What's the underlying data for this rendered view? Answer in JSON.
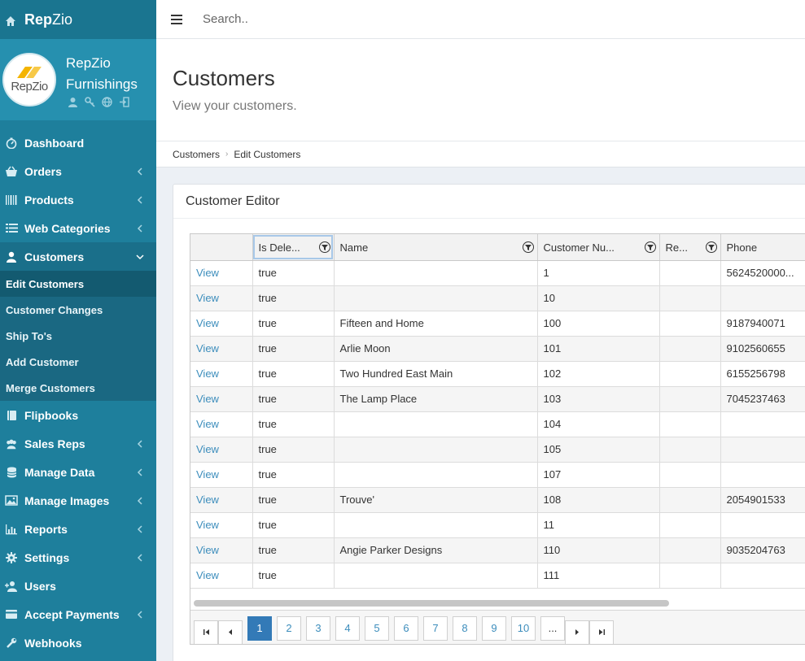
{
  "brand": {
    "part1": "Rep",
    "part2": "Zio"
  },
  "profile": {
    "logo_text": "RepZio",
    "name_line1": "RepZio",
    "name_line2": "Furnishings"
  },
  "nav": [
    {
      "label": "Dashboard",
      "icon": "gauge-icon",
      "has_chevron": false
    },
    {
      "label": "Orders",
      "icon": "basket-icon",
      "has_chevron": true
    },
    {
      "label": "Products",
      "icon": "barcode-icon",
      "has_chevron": true
    },
    {
      "label": "Web Categories",
      "icon": "list-icon",
      "has_chevron": true
    },
    {
      "label": "Customers",
      "icon": "user-icon",
      "has_chevron": true,
      "expanded": true
    }
  ],
  "subnav": [
    {
      "label": "Edit Customers"
    },
    {
      "label": "Customer Changes"
    },
    {
      "label": "Ship To's"
    },
    {
      "label": "Add Customer"
    },
    {
      "label": "Merge Customers"
    }
  ],
  "nav2": [
    {
      "label": "Flipbooks",
      "icon": "book-icon",
      "has_chevron": false
    },
    {
      "label": "Sales Reps",
      "icon": "users-icon",
      "has_chevron": true
    },
    {
      "label": "Manage Data",
      "icon": "database-icon",
      "has_chevron": true
    },
    {
      "label": "Manage Images",
      "icon": "image-icon",
      "has_chevron": true
    },
    {
      "label": "Reports",
      "icon": "bar-chart-icon",
      "has_chevron": true
    },
    {
      "label": "Settings",
      "icon": "gear-icon",
      "has_chevron": true
    },
    {
      "label": "Users",
      "icon": "user-add-icon",
      "has_chevron": false
    },
    {
      "label": "Accept Payments",
      "icon": "credit-card-icon",
      "has_chevron": true
    },
    {
      "label": "Webhooks",
      "icon": "wrench-icon",
      "has_chevron": false
    }
  ],
  "search": {
    "placeholder": "Search.."
  },
  "page": {
    "title": "Customers",
    "subtitle": "View your customers."
  },
  "breadcrumb": {
    "item1": "Customers",
    "item2": "Edit Customers"
  },
  "panel": {
    "title": "Customer Editor"
  },
  "table": {
    "columns": [
      "",
      "Is Dele...",
      "Name",
      "Customer Nu...",
      "Re...",
      "Phone"
    ],
    "rows": [
      {
        "link": "View",
        "deleted": "true",
        "name": "",
        "number": "1",
        "rep": "",
        "phone": "5624520000..."
      },
      {
        "link": "View",
        "deleted": "true",
        "name": "",
        "number": "10",
        "rep": "",
        "phone": ""
      },
      {
        "link": "View",
        "deleted": "true",
        "name": "Fifteen and Home",
        "number": "100",
        "rep": "",
        "phone": "9187940071"
      },
      {
        "link": "View",
        "deleted": "true",
        "name": "Arlie Moon",
        "number": "101",
        "rep": "",
        "phone": "9102560655"
      },
      {
        "link": "View",
        "deleted": "true",
        "name": "Two Hundred East Main",
        "number": "102",
        "rep": "",
        "phone": "6155256798"
      },
      {
        "link": "View",
        "deleted": "true",
        "name": "The Lamp Place",
        "number": "103",
        "rep": "",
        "phone": "7045237463"
      },
      {
        "link": "View",
        "deleted": "true",
        "name": "",
        "number": "104",
        "rep": "",
        "phone": ""
      },
      {
        "link": "View",
        "deleted": "true",
        "name": "",
        "number": "105",
        "rep": "",
        "phone": ""
      },
      {
        "link": "View",
        "deleted": "true",
        "name": "",
        "number": "107",
        "rep": "",
        "phone": ""
      },
      {
        "link": "View",
        "deleted": "true",
        "name": "Trouve'",
        "number": "108",
        "rep": "",
        "phone": "2054901533"
      },
      {
        "link": "View",
        "deleted": "true",
        "name": "",
        "number": "11",
        "rep": "",
        "phone": ""
      },
      {
        "link": "View",
        "deleted": "true",
        "name": "Angie Parker Designs",
        "number": "110",
        "rep": "",
        "phone": "9035204763"
      },
      {
        "link": "View",
        "deleted": "true",
        "name": "",
        "number": "111",
        "rep": "",
        "phone": ""
      }
    ]
  },
  "pager": {
    "pages": [
      "1",
      "2",
      "3",
      "4",
      "5",
      "6",
      "7",
      "8",
      "9",
      "10"
    ],
    "current": "1",
    "ellipsis": "..."
  },
  "colors": {
    "sidebar": "#1e7f9c",
    "accent": "#3c8dbc",
    "active_page": "#337ab7"
  }
}
